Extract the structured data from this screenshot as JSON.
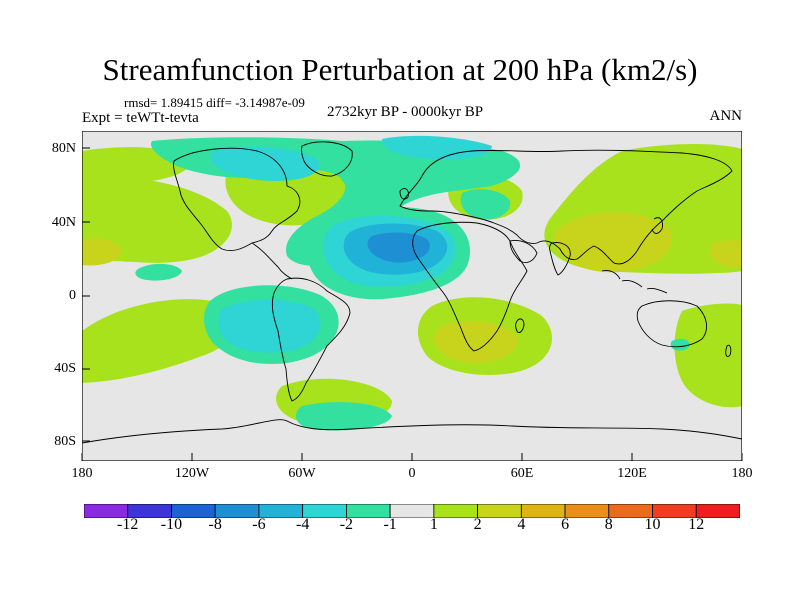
{
  "title": "Streamfunction Perturbation at 200 hPa (km2/s)",
  "stats": "rmsd= 1.89415 diff= -3.14987e-09",
  "experiment": "Expt = teWTt-tevta",
  "period": "2732kyr BP - 0000kyr BP",
  "season": "ANN",
  "lat_labels": [
    "80N",
    "40N",
    "0",
    "40S",
    "80S"
  ],
  "lon_labels": [
    "180",
    "120W",
    "60W",
    "0",
    "60E",
    "120E",
    "180"
  ],
  "colorbar": {
    "labels": [
      "-12",
      "-10",
      "-8",
      "-6",
      "-4",
      "-2",
      "-1",
      "1",
      "2",
      "4",
      "6",
      "8",
      "10",
      "12"
    ],
    "colors": [
      "#8a2be2",
      "#3d35d8",
      "#1c64d6",
      "#1f8fd4",
      "#21b2d8",
      "#2fd4d4",
      "#33e0a0",
      "#e6e6e6",
      "#a8e21c",
      "#c8d41c",
      "#ddb315",
      "#e8901a",
      "#ec6a1d",
      "#ee3d21",
      "#ee1e1e"
    ]
  },
  "palette": {
    "neutral": "#e6e6e6",
    "weak_pos": "#a8e21c",
    "mid_pos": "#c8d41c",
    "weak_neg": "#33e0a0",
    "mid_neg": "#2fd4d4",
    "strong_neg": "#21b2d8",
    "very_strong_neg": "#1f8fd4",
    "coast": "#000000"
  }
}
